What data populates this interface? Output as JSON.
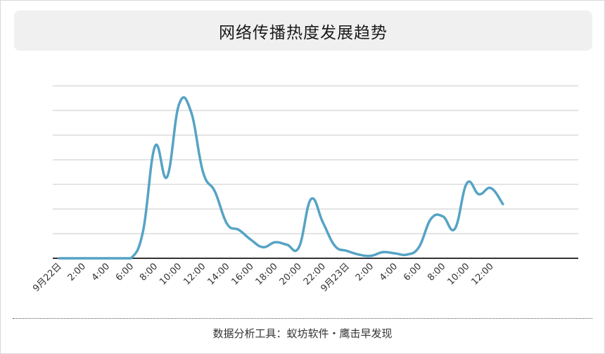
{
  "title": "网络传播热度发展趋势",
  "footer": "数据分析工具：蚁坊软件・鹰击早发现",
  "colors": {
    "line": "#56a3c5",
    "grid": "#c8c8c8",
    "axis": "#333333",
    "title_bg": "#f0f0f0"
  },
  "chart_data": {
    "type": "line",
    "title": "网络传播热度发展趋势",
    "xlabel": "",
    "ylabel": "",
    "grid": true,
    "y_axis_labels_shown": false,
    "ylim": [
      0,
      7
    ],
    "gridlines": [
      1,
      2,
      3,
      4,
      5,
      6,
      7
    ],
    "x_ticks": [
      "9月22日",
      "2:00",
      "4:00",
      "6:00",
      "8:00",
      "10:00",
      "12:00",
      "14:00",
      "16:00",
      "18:00",
      "20:00",
      "22:00",
      "9月23日",
      "2:00",
      "4:00",
      "6:00",
      "8:00",
      "10:00",
      "12:00"
    ],
    "x": [
      "0:00",
      "1:00",
      "2:00",
      "3:00",
      "4:00",
      "5:00",
      "6:00",
      "7:00",
      "8:00",
      "9:00",
      "10:00",
      "11:00",
      "12:00",
      "13:00",
      "14:00",
      "15:00",
      "16:00",
      "17:00",
      "18:00",
      "19:00",
      "20:00",
      "21:00",
      "22:00",
      "23:00",
      "0:00",
      "1:00",
      "2:00",
      "3:00",
      "4:00",
      "5:00",
      "6:00",
      "7:00",
      "8:00",
      "9:00",
      "10:00",
      "11:00",
      "12:00",
      "13:00"
    ],
    "series": [
      {
        "values": [
          0,
          0,
          0,
          0,
          0,
          0,
          0,
          1.1,
          4.55,
          3.3,
          6.25,
          5.95,
          3.5,
          2.7,
          1.4,
          1.15,
          0.75,
          0.45,
          0.65,
          0.55,
          0.45,
          2.4,
          1.45,
          0.5,
          0.3,
          0.15,
          0.1,
          0.25,
          0.2,
          0.15,
          0.45,
          1.6,
          1.7,
          1.2,
          3.05,
          2.6,
          2.85,
          2.2
        ]
      }
    ]
  }
}
